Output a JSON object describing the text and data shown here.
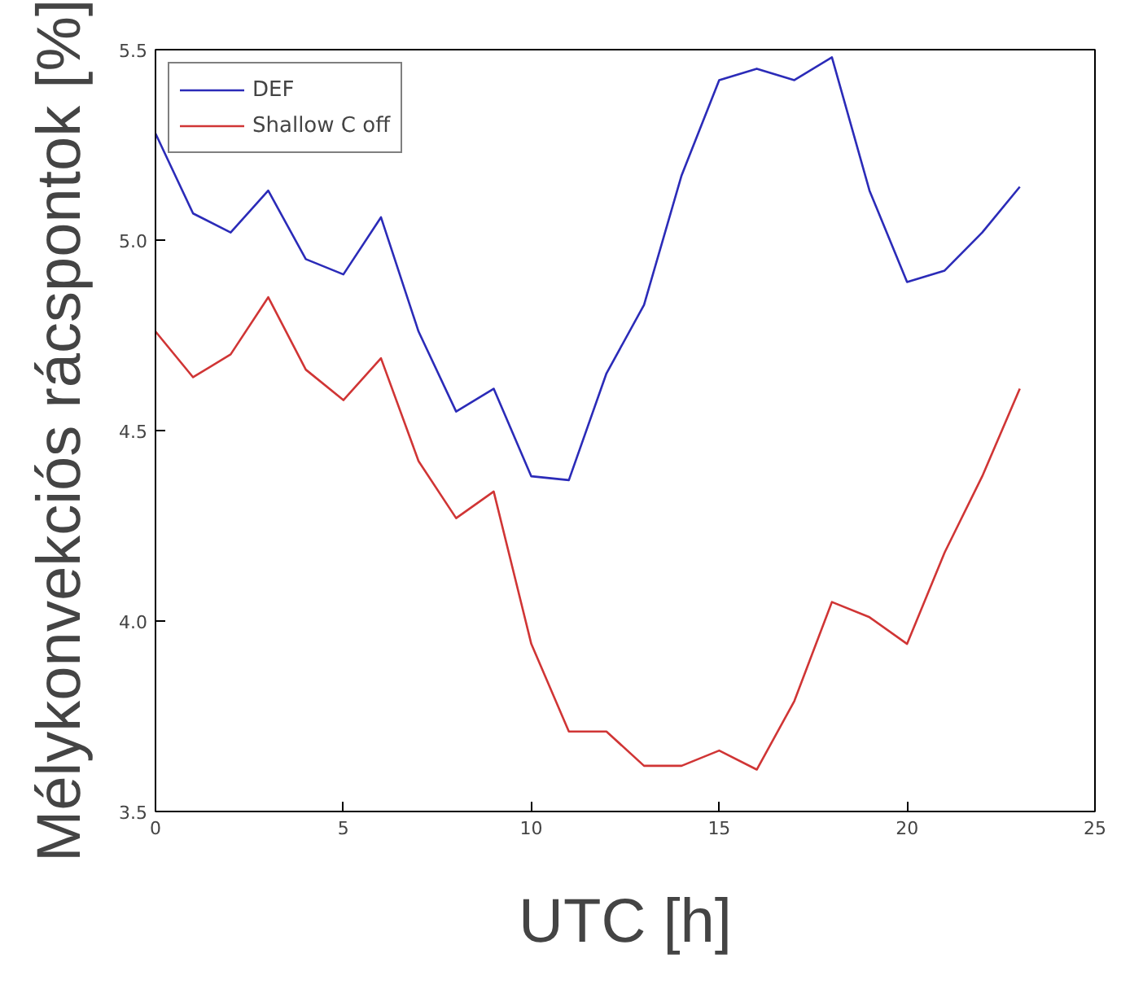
{
  "chart_data": {
    "type": "line",
    "xlabel": "UTC [h]",
    "ylabel": "Mélykonvekciós rácspontok [%]",
    "x": [
      0,
      1,
      2,
      3,
      4,
      5,
      6,
      7,
      8,
      9,
      10,
      11,
      12,
      13,
      14,
      15,
      16,
      17,
      18,
      19,
      20,
      21,
      22,
      23
    ],
    "series": [
      {
        "name": "DEF",
        "color": "#2b2bb8",
        "values": [
          5.28,
          5.07,
          5.02,
          5.13,
          4.95,
          4.91,
          5.06,
          4.76,
          4.55,
          4.61,
          4.38,
          4.37,
          4.65,
          4.83,
          5.17,
          5.42,
          5.45,
          5.42,
          5.48,
          5.13,
          4.89,
          4.92,
          5.02,
          5.14
        ]
      },
      {
        "name": "Shallow C off",
        "color": "#d03535",
        "values": [
          4.76,
          4.64,
          4.7,
          4.85,
          4.66,
          4.58,
          4.69,
          4.42,
          4.27,
          4.34,
          3.94,
          3.71,
          3.71,
          3.62,
          3.62,
          3.66,
          3.61,
          3.79,
          4.05,
          4.01,
          3.94,
          4.18,
          4.38,
          4.61
        ]
      }
    ],
    "xlim": [
      0,
      25
    ],
    "xticks": [
      0,
      5,
      10,
      15,
      20,
      25
    ],
    "ylim": [
      3.5,
      5.5
    ],
    "yticks": [
      {
        "value": 3.5,
        "label": "3.5"
      },
      {
        "value": 4.0,
        "label": "4.0"
      },
      {
        "value": 4.5,
        "label": "4.5"
      },
      {
        "value": 5.0,
        "label": "5.0"
      },
      {
        "value": 5.5,
        "label": "5.5"
      }
    ],
    "grid": false,
    "legend": "top left",
    "line_style": "solid",
    "marker": "none"
  }
}
